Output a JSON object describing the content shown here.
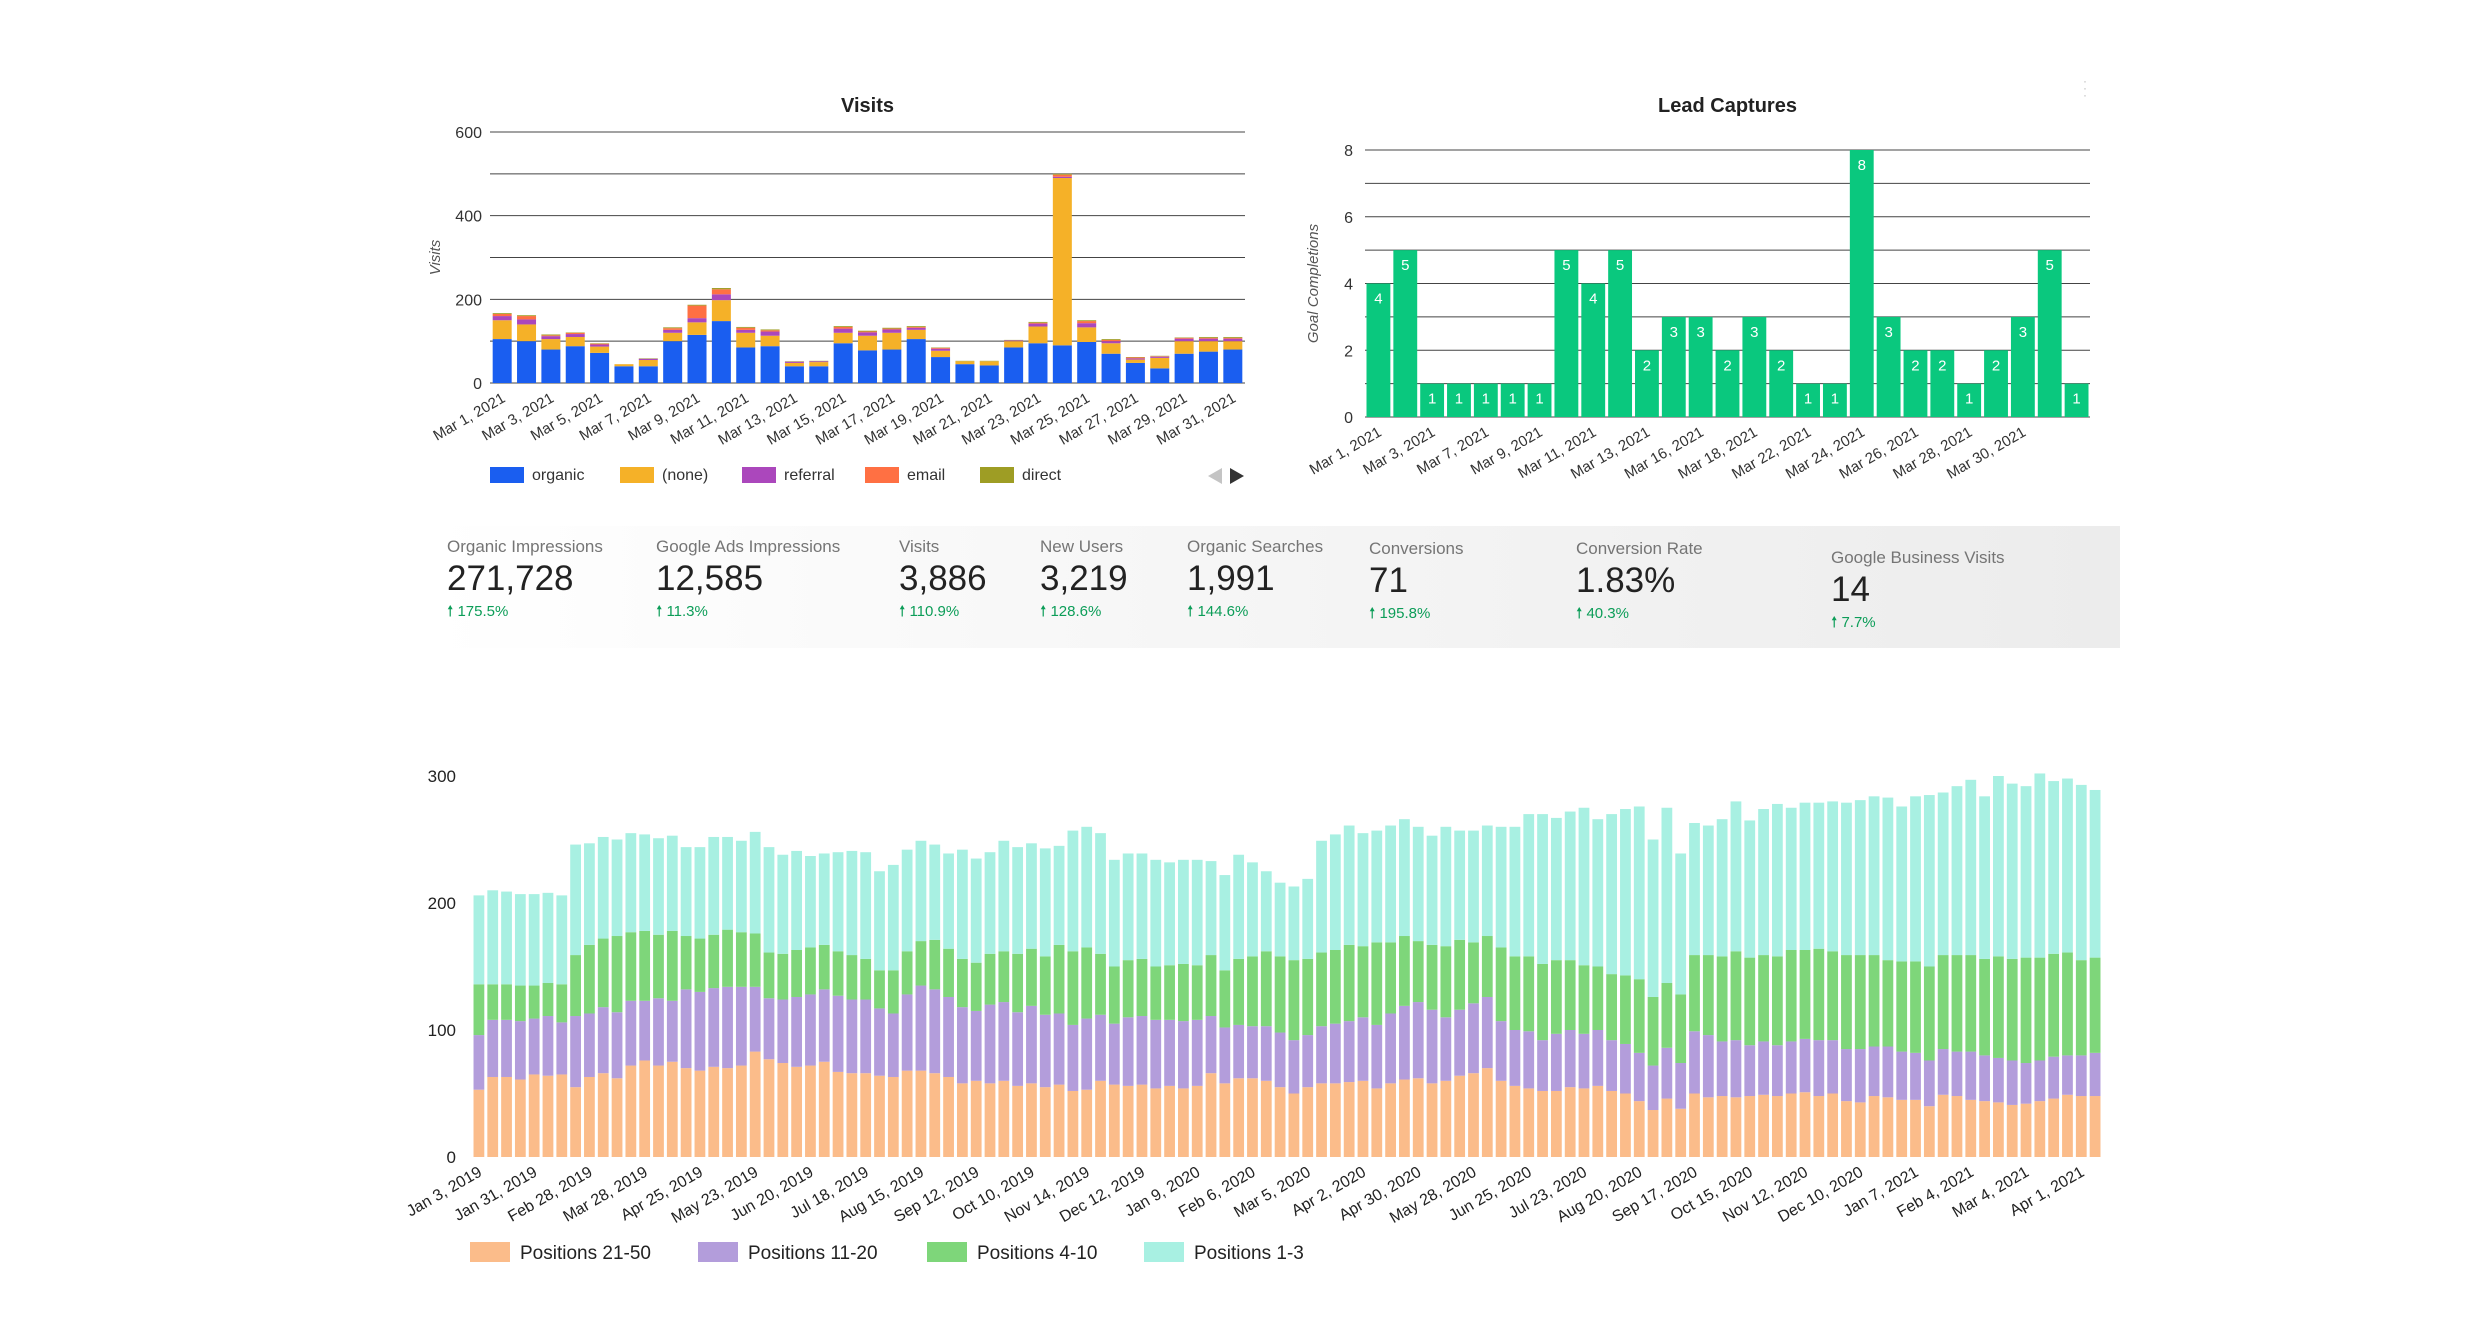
{
  "visits_chart": {
    "type": "bar",
    "stacked": true,
    "title": "Visits",
    "ylabel": "Visits",
    "ylim": [
      0,
      600
    ],
    "yticks": [
      0,
      200,
      400,
      600
    ],
    "tick_labels": [
      "Mar 1, 2021",
      "Mar 3, 2021",
      "Mar 5, 2021",
      "Mar 7, 2021",
      "Mar 9, 2021",
      "Mar 11, 2021",
      "Mar 13, 2021",
      "Mar 15, 2021",
      "Mar 17, 2021",
      "Mar 19, 2021",
      "Mar 21, 2021",
      "Mar 23, 2021",
      "Mar 25, 2021",
      "Mar 27, 2021",
      "Mar 29, 2021",
      "Mar 31, 2021"
    ],
    "categories": [
      "Mar 1",
      "Mar 2",
      "Mar 3",
      "Mar 4",
      "Mar 5",
      "Mar 6",
      "Mar 7",
      "Mar 8",
      "Mar 9",
      "Mar 10",
      "Mar 11",
      "Mar 12",
      "Mar 13",
      "Mar 14",
      "Mar 15",
      "Mar 16",
      "Mar 17",
      "Mar 18",
      "Mar 19",
      "Mar 20",
      "Mar 21",
      "Mar 22",
      "Mar 23",
      "Mar 24",
      "Mar 25",
      "Mar 26",
      "Mar 27",
      "Mar 28",
      "Mar 29",
      "Mar 30",
      "Mar 31"
    ],
    "series": [
      {
        "name": "organic",
        "color": "#1a5ef0",
        "values": [
          105,
          100,
          80,
          88,
          72,
          40,
          40,
          100,
          115,
          148,
          85,
          88,
          40,
          40,
          95,
          78,
          80,
          105,
          62,
          45,
          42,
          85,
          95,
          90,
          98,
          70,
          48,
          35,
          70,
          75,
          80
        ]
      },
      {
        "name": "(none)",
        "color": "#f5b128",
        "values": [
          45,
          40,
          25,
          22,
          15,
          5,
          15,
          20,
          30,
          50,
          35,
          25,
          8,
          10,
          25,
          35,
          40,
          22,
          15,
          7,
          10,
          15,
          40,
          400,
          35,
          25,
          8,
          25,
          30,
          25,
          20
        ]
      },
      {
        "name": "referral",
        "color": "#ab47bc",
        "values": [
          10,
          12,
          7,
          7,
          5,
          0,
          3,
          7,
          10,
          14,
          7,
          10,
          3,
          2,
          10,
          8,
          8,
          5,
          5,
          0,
          0,
          2,
          7,
          3,
          10,
          5,
          3,
          3,
          6,
          6,
          6
        ]
      },
      {
        "name": "email",
        "color": "#ff7043",
        "values": [
          5,
          8,
          2,
          3,
          2,
          0,
          0,
          4,
          30,
          12,
          5,
          3,
          0,
          0,
          4,
          2,
          2,
          2,
          2,
          0,
          0,
          0,
          2,
          5,
          5,
          3,
          2,
          1,
          2,
          2,
          2
        ]
      },
      {
        "name": "direct",
        "color": "#9e9d24",
        "values": [
          2,
          2,
          2,
          1,
          1,
          0,
          1,
          2,
          2,
          3,
          2,
          2,
          1,
          1,
          2,
          2,
          2,
          2,
          1,
          1,
          1,
          1,
          2,
          2,
          2,
          2,
          1,
          1,
          1,
          2,
          2
        ]
      }
    ],
    "legend": [
      "organic",
      "(none)",
      "referral",
      "email",
      "direct"
    ],
    "legend_position": "bottom",
    "grid": true
  },
  "leads_chart": {
    "type": "bar",
    "title": "Lead Captures",
    "ylabel": "Goal Completions",
    "ylim": [
      0,
      8
    ],
    "yticks": [
      0,
      2,
      4,
      6,
      8
    ],
    "color": "#0ac87e",
    "tick_labels": [
      "Mar 1, 2021",
      "Mar 3, 2021",
      "Mar 7, 2021",
      "Mar 9, 2021",
      "Mar 11, 2021",
      "Mar 13, 2021",
      "Mar 16, 2021",
      "Mar 18, 2021",
      "Mar 22, 2021",
      "Mar 24, 2021",
      "Mar 26, 2021",
      "Mar 28, 2021",
      "Mar 30, 2021"
    ],
    "values": [
      4,
      5,
      1,
      1,
      1,
      1,
      1,
      5,
      4,
      5,
      2,
      3,
      3,
      2,
      3,
      2,
      1,
      1,
      8,
      3,
      2,
      2,
      1,
      2,
      3,
      5,
      1
    ],
    "data_labels": true,
    "grid": true
  },
  "scorecards": [
    {
      "label": "Organic Impressions",
      "value": "271,728",
      "delta": "175.5%"
    },
    {
      "label": "Google Ads Impressions",
      "value": "12,585",
      "delta": "11.3%"
    },
    {
      "label": "Visits",
      "value": "3,886",
      "delta": "110.9%"
    },
    {
      "label": "New Users",
      "value": "3,219",
      "delta": "128.6%"
    },
    {
      "label": "Organic Searches",
      "value": "1,991",
      "delta": "144.6%"
    },
    {
      "label": "Conversions",
      "value": "71",
      "delta": "195.8%"
    },
    {
      "label": "Conversion Rate",
      "value": "1.83%",
      "delta": "40.3%"
    },
    {
      "label": "Google Business Visits",
      "value": "14",
      "delta": "7.7%"
    }
  ],
  "delta_color": "#0c9d58",
  "ranking_chart": {
    "type": "bar",
    "stacked": true,
    "ylim": [
      0,
      300
    ],
    "yticks": [
      0,
      100,
      200,
      300
    ],
    "tick_labels": [
      "Jan 3, 2019",
      "Jan 31, 2019",
      "Feb 28, 2019",
      "Mar 28, 2019",
      "Apr 25, 2019",
      "May 23, 2019",
      "Jun 20, 2019",
      "Jul 18, 2019",
      "Aug 15, 2019",
      "Sep 12, 2019",
      "Oct 10, 2019",
      "Nov 14, 2019",
      "Dec 12, 2019",
      "Jan 9, 2020",
      "Feb 6, 2020",
      "Mar 5, 2020",
      "Apr 2, 2020",
      "Apr 30, 2020",
      "May 28, 2020",
      "Jun 25, 2020",
      "Jul 23, 2020",
      "Aug 20, 2020",
      "Sep 17, 2020",
      "Oct 15, 2020",
      "Nov 12, 2020",
      "Dec 10, 2020",
      "Jan 7, 2021",
      "Feb 4, 2021",
      "Mar 4, 2021",
      "Apr 1, 2021"
    ],
    "series": [
      {
        "name": "Positions 21-50",
        "color": "#fbbc8a",
        "values": [
          53,
          63,
          63,
          61,
          65,
          64,
          65,
          55,
          63,
          66,
          62,
          72,
          76,
          72,
          75,
          70,
          68,
          71,
          70,
          72,
          83,
          77,
          74,
          71,
          72,
          75,
          67,
          66,
          66,
          64,
          63,
          68,
          68,
          66,
          63,
          58,
          60,
          58,
          60,
          56,
          58,
          55,
          57,
          52,
          53,
          60,
          57,
          56,
          57,
          54,
          56,
          54,
          56,
          66,
          58,
          62,
          62,
          60,
          55,
          50,
          55,
          58,
          58,
          59,
          60,
          54,
          58,
          61,
          62,
          58,
          60,
          64,
          66,
          70,
          60,
          56,
          54,
          52,
          52,
          55,
          54,
          56,
          52,
          50,
          44,
          37,
          46,
          38,
          50,
          47,
          48,
          47,
          48,
          49,
          48,
          50,
          51,
          48,
          50,
          44,
          43,
          48,
          47,
          45,
          45,
          40,
          49,
          48,
          45,
          44,
          43,
          41,
          42,
          44,
          46,
          49,
          48,
          48
        ]
      },
      {
        "name": "Positions 11-20",
        "color": "#b39ddb",
        "values": [
          43,
          45,
          45,
          46,
          44,
          47,
          41,
          56,
          50,
          52,
          52,
          51,
          47,
          53,
          48,
          62,
          62,
          62,
          64,
          62,
          51,
          48,
          50,
          55,
          56,
          57,
          60,
          58,
          58,
          53,
          50,
          60,
          67,
          66,
          63,
          60,
          55,
          62,
          62,
          58,
          61,
          57,
          56,
          52,
          56,
          52,
          48,
          54,
          54,
          54,
          52,
          53,
          52,
          45,
          44,
          42,
          41,
          43,
          43,
          42,
          41,
          45,
          47,
          48,
          50,
          50,
          55,
          58,
          60,
          58,
          50,
          52,
          55,
          56,
          47,
          44,
          45,
          40,
          45,
          45,
          43,
          44,
          40,
          39,
          38,
          35,
          40,
          36,
          49,
          49,
          43,
          45,
          40,
          42,
          40,
          41,
          42,
          44,
          42,
          41,
          42,
          39,
          40,
          38,
          37,
          36,
          36,
          35,
          38,
          36,
          35,
          35,
          32,
          32,
          33,
          31,
          32,
          34
        ]
      },
      {
        "name": "Positions 4-10",
        "color": "#7ed67a",
        "values": [
          40,
          28,
          28,
          28,
          26,
          26,
          30,
          48,
          54,
          54,
          60,
          54,
          55,
          50,
          55,
          42,
          42,
          42,
          45,
          43,
          42,
          36,
          36,
          37,
          37,
          35,
          35,
          35,
          32,
          30,
          34,
          34,
          35,
          39,
          38,
          38,
          38,
          40,
          40,
          46,
          45,
          46,
          54,
          58,
          56,
          48,
          45,
          45,
          45,
          42,
          43,
          45,
          43,
          48,
          45,
          52,
          55,
          59,
          60,
          63,
          60,
          58,
          58,
          60,
          56,
          65,
          56,
          55,
          48,
          51,
          56,
          55,
          48,
          48,
          58,
          58,
          59,
          60,
          58,
          55,
          54,
          50,
          52,
          54,
          58,
          54,
          51,
          54,
          60,
          63,
          67,
          70,
          69,
          68,
          70,
          72,
          70,
          72,
          70,
          74,
          74,
          72,
          68,
          71,
          72,
          74,
          74,
          76,
          76,
          76,
          80,
          80,
          83,
          81,
          81,
          81,
          75,
          75
        ]
      },
      {
        "name": "Positions 1-3",
        "color": "#a8f0e2",
        "values": [
          70,
          74,
          73,
          72,
          72,
          71,
          70,
          87,
          80,
          80,
          76,
          78,
          76,
          76,
          75,
          70,
          72,
          77,
          73,
          72,
          80,
          83,
          78,
          78,
          72,
          72,
          78,
          82,
          84,
          78,
          83,
          80,
          79,
          75,
          75,
          86,
          82,
          80,
          87,
          84,
          83,
          85,
          78,
          95,
          95,
          95,
          84,
          84,
          83,
          84,
          81,
          82,
          83,
          74,
          75,
          82,
          74,
          63,
          58,
          58,
          63,
          88,
          91,
          94,
          89,
          88,
          92,
          92,
          90,
          86,
          94,
          86,
          88,
          87,
          95,
          102,
          112,
          118,
          112,
          117,
          124,
          116,
          126,
          131,
          136,
          124,
          138,
          111,
          104,
          102,
          108,
          118,
          108,
          115,
          120,
          112,
          116,
          115,
          118,
          120,
          122,
          125,
          128,
          122,
          130,
          135,
          128,
          133,
          138,
          128,
          142,
          138,
          135,
          145,
          136,
          137,
          138,
          132
        ]
      }
    ],
    "legend": [
      "Positions 21-50",
      "Positions 11-20",
      "Positions 4-10",
      "Positions 1-3"
    ],
    "legend_position": "bottom-left",
    "grid": false
  }
}
